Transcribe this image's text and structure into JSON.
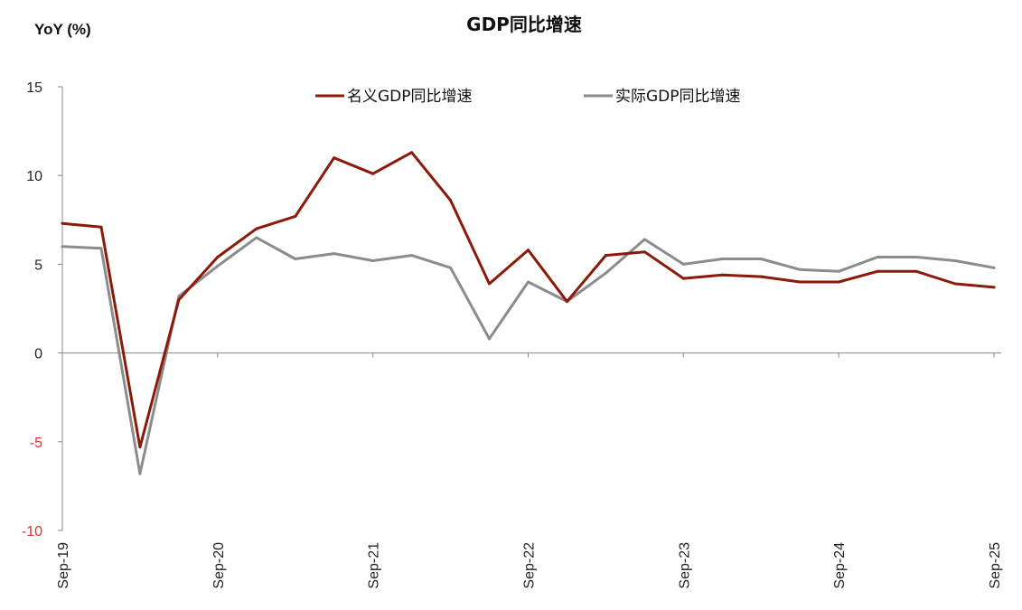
{
  "chart_data": {
    "type": "line",
    "title": "GDP同比增速",
    "ylabel": "YoY (%)",
    "xlabel": "",
    "ylim": [
      -10,
      15
    ],
    "yticks": [
      "15",
      "10",
      "5",
      "0",
      "-5",
      "-10"
    ],
    "x_tick_labels": [
      "Sep-19",
      "Sep-20",
      "Sep-21",
      "Sep-22",
      "Sep-23",
      "Sep-24",
      "Sep-25"
    ],
    "x": [
      "Sep-19",
      "Dec-19",
      "Mar-20",
      "Jun-20",
      "Sep-20",
      "Dec-20",
      "Mar-21",
      "Jun-21",
      "Sep-21",
      "Dec-21",
      "Mar-22",
      "Jun-22",
      "Sep-22",
      "Dec-22",
      "Mar-23",
      "Jun-23",
      "Sep-23",
      "Dec-23",
      "Mar-24",
      "Jun-24",
      "Sep-24",
      "Dec-24",
      "Mar-25",
      "Jun-25",
      "Sep-25"
    ],
    "legend_position": "top",
    "grid": false,
    "series": [
      {
        "name": "名义GDP同比增速",
        "color": "#8b1a0a",
        "values": [
          7.3,
          7.1,
          -5.3,
          3.0,
          5.4,
          7.0,
          7.7,
          11.0,
          10.1,
          11.3,
          8.6,
          3.9,
          5.8,
          2.9,
          5.5,
          5.7,
          4.2,
          4.4,
          4.3,
          4.0,
          4.0,
          4.6,
          4.6,
          3.9,
          3.7
        ]
      },
      {
        "name": "实际GDP同比增速",
        "color": "#8c8c8c",
        "values": [
          6.0,
          5.9,
          -6.8,
          3.2,
          4.9,
          6.5,
          5.3,
          5.6,
          5.2,
          5.5,
          4.8,
          0.8,
          4.0,
          2.9,
          4.5,
          6.4,
          5.0,
          5.3,
          5.3,
          4.7,
          4.6,
          5.4,
          5.4,
          5.2,
          4.8
        ]
      }
    ]
  }
}
